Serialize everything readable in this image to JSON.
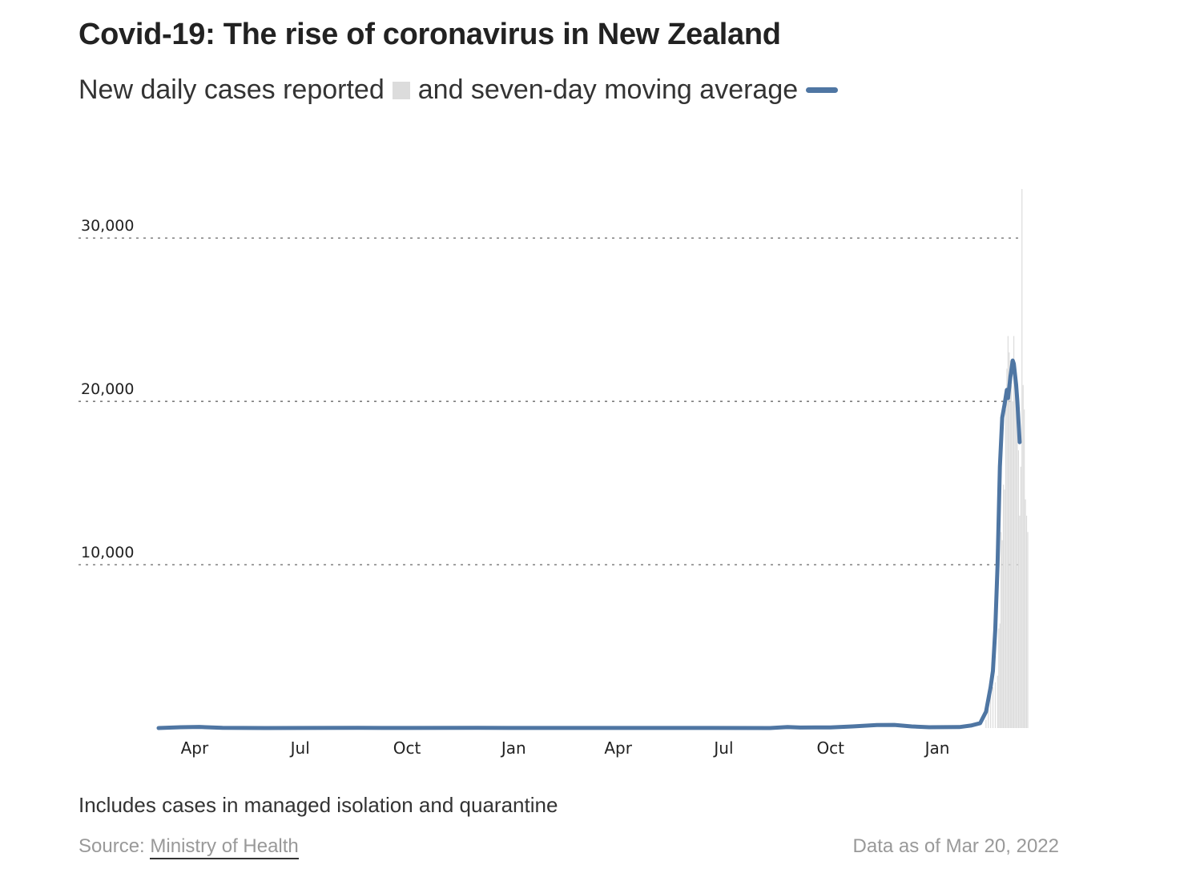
{
  "title": "Covid-19: The rise of coronavirus in New Zealand",
  "subtitle": {
    "part1": "New daily cases reported",
    "part2": "and seven-day moving average"
  },
  "note": "Includes cases in managed isolation and quarantine",
  "source": {
    "prefix": "Source: ",
    "link_text": "Ministry of Health"
  },
  "data_as_of": "Data as of Mar 20, 2022",
  "colors": {
    "bars": "#dcdcdc",
    "average_line": "#4f76a3",
    "grid": "#555555"
  },
  "chart_data": {
    "type": "bar",
    "x_start": "2020-03-01",
    "x_end": "2022-03-20",
    "ylim": [
      0,
      33000
    ],
    "grid": true,
    "y_ticks": [
      {
        "value": 10000,
        "label": "10,000"
      },
      {
        "value": 20000,
        "label": "20,000"
      },
      {
        "value": 30000,
        "label": "30,000"
      }
    ],
    "x_ticks": [
      {
        "date": "2020-04-01",
        "label": "Apr"
      },
      {
        "date": "2020-07-01",
        "label": "Jul"
      },
      {
        "date": "2020-10-01",
        "label": "Oct"
      },
      {
        "date": "2021-01-01",
        "label": "Jan"
      },
      {
        "date": "2021-04-01",
        "label": "Apr"
      },
      {
        "date": "2021-07-01",
        "label": "Jul"
      },
      {
        "date": "2021-10-01",
        "label": "Oct"
      },
      {
        "date": "2022-01-01",
        "label": "Jan"
      }
    ],
    "series": [
      {
        "type": "bar",
        "points": [
          [
            "2022-02-12",
            500
          ],
          [
            "2022-02-14",
            1200
          ],
          [
            "2022-02-16",
            2000
          ],
          [
            "2022-02-18",
            2500
          ],
          [
            "2022-02-20",
            2800
          ],
          [
            "2022-02-22",
            3200
          ],
          [
            "2022-02-23",
            6100
          ],
          [
            "2022-02-24",
            6400
          ],
          [
            "2022-02-25",
            12000
          ],
          [
            "2022-02-26",
            11500
          ],
          [
            "2022-02-27",
            14900
          ],
          [
            "2022-02-28",
            14600
          ],
          [
            "2022-03-01",
            19500
          ],
          [
            "2022-03-02",
            22000
          ],
          [
            "2022-03-03",
            24000
          ],
          [
            "2022-03-04",
            23000
          ],
          [
            "2022-03-05",
            22500
          ],
          [
            "2022-03-06",
            21000
          ],
          [
            "2022-03-07",
            20000
          ],
          [
            "2022-03-08",
            24000
          ],
          [
            "2022-03-09",
            21000
          ],
          [
            "2022-03-10",
            20000
          ],
          [
            "2022-03-11",
            19500
          ],
          [
            "2022-03-12",
            17000
          ],
          [
            "2022-03-13",
            13000
          ],
          [
            "2022-03-14",
            16000
          ],
          [
            "2022-03-15",
            33000
          ],
          [
            "2022-03-16",
            21000
          ],
          [
            "2022-03-17",
            19500
          ],
          [
            "2022-03-18",
            14000
          ],
          [
            "2022-03-19",
            13000
          ],
          [
            "2022-03-20",
            12000
          ]
        ]
      },
      {
        "type": "line",
        "points": [
          [
            "2020-03-01",
            0
          ],
          [
            "2020-03-20",
            50
          ],
          [
            "2020-04-05",
            70
          ],
          [
            "2020-04-25",
            10
          ],
          [
            "2020-06-01",
            0
          ],
          [
            "2020-08-20",
            10
          ],
          [
            "2020-09-10",
            5
          ],
          [
            "2020-12-01",
            8
          ],
          [
            "2021-03-01",
            5
          ],
          [
            "2021-06-01",
            3
          ],
          [
            "2021-08-10",
            0
          ],
          [
            "2021-08-25",
            60
          ],
          [
            "2021-09-05",
            30
          ],
          [
            "2021-10-01",
            40
          ],
          [
            "2021-10-20",
            100
          ],
          [
            "2021-11-10",
            180
          ],
          [
            "2021-11-25",
            190
          ],
          [
            "2021-12-10",
            100
          ],
          [
            "2021-12-25",
            50
          ],
          [
            "2022-01-20",
            60
          ],
          [
            "2022-01-30",
            150
          ],
          [
            "2022-02-07",
            300
          ],
          [
            "2022-02-12",
            1000
          ],
          [
            "2022-02-16",
            2500
          ],
          [
            "2022-02-18",
            3500
          ],
          [
            "2022-02-20",
            6000
          ],
          [
            "2022-02-22",
            10000
          ],
          [
            "2022-02-24",
            16000
          ],
          [
            "2022-02-26",
            19000
          ],
          [
            "2022-02-28",
            19800
          ],
          [
            "2022-03-02",
            20700
          ],
          [
            "2022-03-03",
            20200
          ],
          [
            "2022-03-05",
            21500
          ],
          [
            "2022-03-07",
            22500
          ],
          [
            "2022-03-08",
            22300
          ],
          [
            "2022-03-10",
            21000
          ],
          [
            "2022-03-11",
            20000
          ],
          [
            "2022-03-13",
            17500
          ]
        ]
      }
    ]
  }
}
